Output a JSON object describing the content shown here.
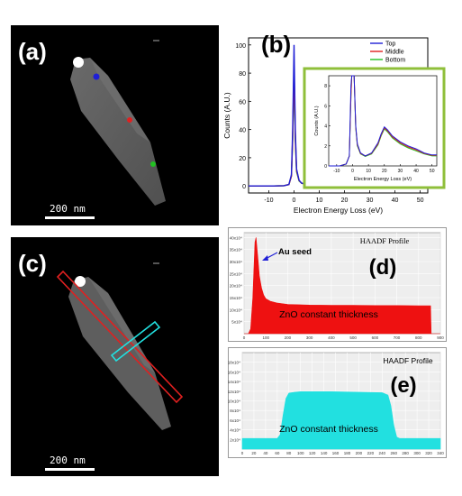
{
  "panels": {
    "a": {
      "label": "(a)",
      "scale_bar": "200 nm"
    },
    "b": {
      "label": "(b)"
    },
    "c": {
      "label": "(c)",
      "scale_bar": "200 nm"
    },
    "d": {
      "label": "(d)",
      "title": "HAADF Profile",
      "annotation_seed": "Au seed",
      "annotation_body": "ZnO constant thickness"
    },
    "e": {
      "label": "(e)",
      "title": "HAADF Profile",
      "annotation_body": "ZnO constant thickness"
    }
  },
  "colors": {
    "top": "#1f1fd6",
    "middle": "#e02020",
    "bottom": "#22c022",
    "inset_frame": "#8fbf3a",
    "profile_d": "#ee1111",
    "profile_e": "#22e0e0"
  },
  "chart_data": [
    {
      "type": "line",
      "id": "b-main",
      "xlabel": "Electron Energy Loss (eV)",
      "ylabel": "Counts (A.U.)",
      "xlim": [
        -18,
        53
      ],
      "ylim": [
        -5,
        105
      ],
      "xticks": [
        "-10",
        "0",
        "10",
        "20",
        "30",
        "40",
        "50"
      ],
      "xtick_values": [
        -10,
        0,
        10,
        20,
        30,
        40,
        50
      ],
      "yticks": [
        "0",
        "20",
        "40",
        "60",
        "80",
        "100"
      ],
      "ytick_values": [
        0,
        20,
        40,
        60,
        80,
        100
      ],
      "legend": [
        "Top",
        "Middle",
        "Bottom"
      ],
      "legend_position": "top-right",
      "series": [
        {
          "name": "Top",
          "x": [
            -18,
            -8,
            -4,
            -2,
            -1,
            -0.5,
            0,
            0.5,
            1,
            2,
            3,
            5,
            8,
            12,
            16,
            18,
            20,
            22,
            25,
            30,
            35,
            40,
            45,
            50,
            53
          ],
          "y": [
            0,
            0,
            0.2,
            1,
            8,
            40,
            100,
            40,
            12,
            4,
            2,
            1.2,
            1,
            1.2,
            2,
            3,
            4.2,
            3.8,
            3,
            2,
            1.5,
            1.2,
            1,
            0.8,
            0.8
          ]
        },
        {
          "name": "Middle",
          "x": [
            -18,
            -8,
            -4,
            -2,
            -1,
            -0.5,
            0,
            0.5,
            1,
            2,
            3,
            5,
            8,
            12,
            16,
            18,
            20,
            22,
            25,
            30,
            35,
            40,
            45,
            50,
            53
          ],
          "y": [
            0,
            0,
            0.2,
            1,
            7,
            35,
            86,
            35,
            11,
            3.8,
            2,
            1.1,
            1,
            1.1,
            1.9,
            2.8,
            3.9,
            3.6,
            2.8,
            1.9,
            1.4,
            1.1,
            0.9,
            0.7,
            0.7
          ]
        },
        {
          "name": "Bottom",
          "x": [
            -18,
            -8,
            -4,
            -2,
            -1,
            -0.5,
            0,
            0.5,
            1,
            2,
            3,
            5,
            8,
            12,
            16,
            18,
            20,
            22,
            25,
            30,
            35,
            40,
            45,
            50,
            53
          ],
          "y": [
            0,
            0,
            0.2,
            1,
            7,
            33,
            81,
            33,
            10,
            3.6,
            1.9,
            1.1,
            0.9,
            1.1,
            1.8,
            2.7,
            3.8,
            3.5,
            2.7,
            1.8,
            1.3,
            1,
            0.8,
            0.7,
            0.7
          ]
        }
      ]
    },
    {
      "type": "line",
      "id": "b-inset",
      "xlabel": "Electron Energy Loss (eV)",
      "ylabel": "Counts (A.U.)",
      "xlim": [
        -15,
        53
      ],
      "ylim": [
        0,
        9
      ],
      "xticks": [
        "-10",
        "0",
        "10",
        "20",
        "30",
        "40",
        "50"
      ],
      "xtick_values": [
        -10,
        0,
        10,
        20,
        30,
        40,
        50
      ],
      "yticks": [
        "0",
        "2",
        "4",
        "6",
        "8"
      ],
      "ytick_values": [
        0,
        2,
        4,
        6,
        8
      ],
      "series": [
        {
          "name": "Top",
          "x": [
            -15,
            -8,
            -4,
            -2,
            -1,
            -0.5,
            0,
            0.5,
            1,
            2,
            3,
            5,
            8,
            12,
            16,
            18,
            20,
            22,
            25,
            30,
            35,
            40,
            45,
            50,
            53
          ],
          "y": [
            0,
            0,
            0.2,
            1,
            8,
            9,
            9,
            9,
            9,
            4,
            2.2,
            1.3,
            1,
            1.3,
            2.3,
            3.2,
            3.9,
            3.6,
            3,
            2.4,
            2,
            1.7,
            1.3,
            1.1,
            1.1
          ]
        },
        {
          "name": "Middle",
          "x": [
            -15,
            -8,
            -4,
            -2,
            -1,
            -0.5,
            0,
            0.5,
            1,
            2,
            3,
            5,
            8,
            12,
            16,
            18,
            20,
            22,
            25,
            30,
            35,
            40,
            45,
            50,
            53
          ],
          "y": [
            0,
            0,
            0.2,
            1,
            7,
            9,
            9,
            9,
            9,
            3.9,
            2.1,
            1.25,
            1,
            1.25,
            2.2,
            3.1,
            3.8,
            3.5,
            2.9,
            2.3,
            1.9,
            1.6,
            1.25,
            1.05,
            1.05
          ]
        },
        {
          "name": "Bottom",
          "x": [
            -15,
            -8,
            -4,
            -2,
            -1,
            -0.5,
            0,
            0.5,
            1,
            2,
            3,
            5,
            8,
            12,
            16,
            18,
            20,
            22,
            25,
            30,
            35,
            40,
            45,
            50,
            53
          ],
          "y": [
            0,
            0,
            0.2,
            1,
            7,
            9,
            9,
            9,
            9,
            3.8,
            2,
            1.2,
            0.95,
            1.2,
            2.1,
            3,
            3.7,
            3.4,
            2.8,
            2.2,
            1.8,
            1.5,
            1.2,
            1,
            1
          ]
        }
      ]
    },
    {
      "type": "area",
      "id": "d-profile",
      "title": "HAADF Profile",
      "xlim": [
        0,
        900
      ],
      "ylim": [
        0,
        420000
      ],
      "xticks": [
        "0",
        "100",
        "200",
        "300",
        "400",
        "500",
        "600",
        "700",
        "800",
        "900"
      ],
      "xtick_values": [
        0,
        100,
        200,
        300,
        400,
        500,
        600,
        700,
        800,
        900
      ],
      "yticks": [
        "5x10⁴",
        "10x10⁴",
        "15x10⁴",
        "20x10⁴",
        "25x10⁴",
        "30x10⁴",
        "35x10⁴",
        "40x10⁴"
      ],
      "ytick_values": [
        50000,
        100000,
        150000,
        200000,
        250000,
        300000,
        350000,
        400000
      ],
      "x": [
        0,
        20,
        30,
        40,
        50,
        55,
        60,
        65,
        70,
        80,
        90,
        100,
        120,
        150,
        200,
        300,
        400,
        500,
        600,
        700,
        800,
        855,
        858,
        900
      ],
      "y": [
        0,
        0,
        20000,
        150000,
        380000,
        400000,
        350000,
        300000,
        240000,
        190000,
        160000,
        145000,
        135000,
        128000,
        122000,
        119000,
        118000,
        118000,
        117000,
        117000,
        116000,
        116000,
        0,
        0
      ]
    },
    {
      "type": "area",
      "id": "e-profile",
      "title": "HAADF Profile",
      "xlim": [
        0,
        340
      ],
      "ylim": [
        0,
        200000
      ],
      "xticks": [
        "0",
        "20",
        "40",
        "60",
        "80",
        "100",
        "120",
        "140",
        "160",
        "180",
        "200",
        "220",
        "240",
        "260",
        "280",
        "300",
        "320",
        "340"
      ],
      "xtick_values": [
        0,
        20,
        40,
        60,
        80,
        100,
        120,
        140,
        160,
        180,
        200,
        220,
        240,
        260,
        280,
        300,
        320,
        340
      ],
      "yticks": [
        "2x10⁴",
        "4x10⁴",
        "6x10⁴",
        "8x10⁴",
        "10x10⁴",
        "12x10⁴",
        "14x10⁴",
        "16x10⁴",
        "18x10⁴"
      ],
      "ytick_values": [
        20000,
        40000,
        60000,
        80000,
        100000,
        120000,
        140000,
        160000,
        180000
      ],
      "x": [
        0,
        60,
        65,
        70,
        75,
        80,
        90,
        100,
        150,
        200,
        240,
        250,
        255,
        260,
        265,
        270,
        340
      ],
      "y": [
        22000,
        22000,
        30000,
        70000,
        105000,
        116000,
        118000,
        119000,
        119000,
        118000,
        117000,
        112000,
        90000,
        50000,
        25000,
        22000,
        22000
      ]
    }
  ]
}
